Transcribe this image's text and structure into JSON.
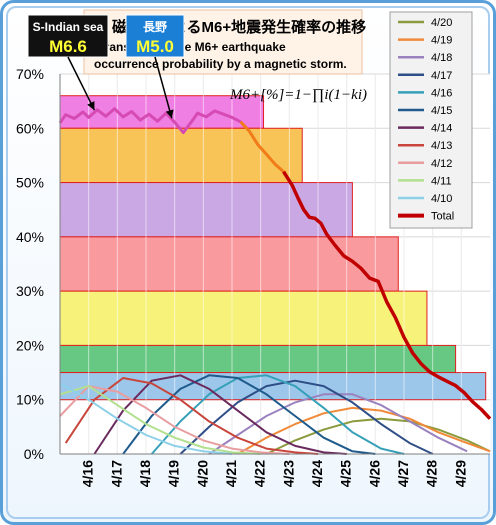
{
  "chart_data": {
    "type": "line",
    "title_line1": "磁気嵐によるM6+地震発生確率の推移",
    "title_line2": "Transition of the M6+ earthquake",
    "title_line3": "occurrence probability by a magnetic storm.",
    "formula": "M6+[%]=1−∏i(1−ki)",
    "ylim": [
      0,
      70
    ],
    "yticks": [
      "0%",
      "10%",
      "20%",
      "30%",
      "40%",
      "50%",
      "60%",
      "70%"
    ],
    "xticks": [
      "4/16",
      "4/17",
      "4/18",
      "4/19",
      "4/20",
      "4/21",
      "4/22",
      "4/23",
      "4/24",
      "4/25",
      "4/26",
      "4/27",
      "4/28",
      "4/29"
    ],
    "xrange": [
      0,
      15
    ],
    "legend_placement": "right",
    "legend": [
      {
        "name": "4/20",
        "color": "#8a9a3c"
      },
      {
        "name": "4/19",
        "color": "#f08a3a"
      },
      {
        "name": "4/18",
        "color": "#9a82bf"
      },
      {
        "name": "4/17",
        "color": "#2f4e87"
      },
      {
        "name": "4/16",
        "color": "#36a0b8"
      },
      {
        "name": "4/15",
        "color": "#1e5a8c"
      },
      {
        "name": "4/14",
        "color": "#6a2a5e"
      },
      {
        "name": "4/13",
        "color": "#c8463c"
      },
      {
        "name": "4/12",
        "color": "#e89ea0"
      },
      {
        "name": "4/11",
        "color": "#b2e08e"
      },
      {
        "name": "4/10",
        "color": "#8ed0e8"
      },
      {
        "name": "Total",
        "color": "#c00000"
      }
    ],
    "bands": [
      {
        "x0": 0,
        "x1": 7.1,
        "y0": 60,
        "y1": 66,
        "fill": "#ef7fe2"
      },
      {
        "x0": 0,
        "x1": 8.45,
        "y0": 50,
        "y1": 60,
        "fill": "#f8c458"
      },
      {
        "x0": 0,
        "x1": 10.2,
        "y0": 40,
        "y1": 50,
        "fill": "#c9a8e4"
      },
      {
        "x0": 0,
        "x1": 11.8,
        "y0": 30,
        "y1": 40,
        "fill": "#f99a9e"
      },
      {
        "x0": 0,
        "x1": 12.8,
        "y0": 20,
        "y1": 30,
        "fill": "#f7f27a"
      },
      {
        "x0": 0,
        "x1": 13.8,
        "y0": 15,
        "y1": 20,
        "fill": "#66c883"
      },
      {
        "x0": 0,
        "x1": 14.85,
        "y0": 10,
        "y1": 15,
        "fill": "#9cc7ea"
      }
    ],
    "series_total": {
      "name": "Total",
      "color": "#c00000",
      "x": [
        0,
        0.2,
        0.5,
        0.8,
        1.0,
        1.3,
        1.6,
        1.9,
        2.2,
        2.5,
        2.8,
        3.1,
        3.4,
        3.7,
        4.0,
        4.3,
        4.6,
        4.8,
        5.1,
        5.4,
        5.7,
        6.0,
        6.3,
        6.6,
        6.9,
        7.2,
        7.5,
        7.8,
        8.1,
        8.3,
        8.5,
        8.7,
        8.9,
        9.1,
        9.3,
        9.6,
        9.9,
        10.2,
        10.5,
        10.8,
        11.1,
        11.4,
        11.7,
        12.0,
        12.3,
        12.6,
        12.9,
        13.2,
        13.5,
        13.8,
        14.1,
        14.4,
        14.7,
        15.0
      ],
      "y": [
        61,
        62.5,
        61.8,
        63,
        62,
        63.4,
        62.2,
        63.6,
        62.1,
        63.1,
        61.5,
        62.6,
        61.3,
        62.8,
        61.1,
        59.2,
        61.3,
        62.8,
        62.1,
        63.2,
        62.6,
        62,
        61.2,
        59.5,
        57,
        55.2,
        53.4,
        52,
        49.5,
        47.2,
        45,
        43.6,
        43.4,
        42.5,
        40.5,
        38.4,
        36.5,
        35.5,
        34.2,
        32.4,
        31.8,
        28,
        25.1,
        21.5,
        18.6,
        16.6,
        15.1,
        14.2,
        13.4,
        12.6,
        11.3,
        9.6,
        8.2,
        6.5
      ]
    },
    "series": [
      {
        "name": "4/20",
        "color": "#8a9a3c",
        "x": [
          7.2,
          8.2,
          9.2,
          10.2,
          11.2,
          12.2,
          13.2,
          14.2,
          15.0
        ],
        "y": [
          0,
          2.5,
          4.5,
          6,
          6.5,
          6,
          4.5,
          2.5,
          0.5
        ]
      },
      {
        "name": "4/19",
        "color": "#f08a3a",
        "x": [
          6.2,
          7.2,
          8.2,
          9.2,
          10.2,
          11.2,
          12.2,
          13.2,
          14.2,
          15.0
        ],
        "y": [
          0,
          3,
          5.5,
          7.5,
          8.5,
          8,
          6.5,
          4,
          2,
          0.5
        ]
      },
      {
        "name": "4/18",
        "color": "#9a82bf",
        "x": [
          5.2,
          6.2,
          7.2,
          8.2,
          9.2,
          10.2,
          11.2,
          12.2,
          13.2,
          14.2
        ],
        "y": [
          0,
          3.5,
          7,
          9.5,
          11,
          11,
          9,
          6,
          3,
          0.5
        ]
      },
      {
        "name": "4/17",
        "color": "#2f4e87",
        "x": [
          4.2,
          5.2,
          6.2,
          7.2,
          8.2,
          9.2,
          10.2,
          11.2,
          12.2,
          13.0
        ],
        "y": [
          0,
          5,
          9.5,
          12.5,
          13.5,
          12.5,
          9.5,
          5.5,
          2,
          0
        ]
      },
      {
        "name": "4/16",
        "color": "#36a0b8",
        "x": [
          3.2,
          4.2,
          5.2,
          6.2,
          7.2,
          8.2,
          9.2,
          10.2,
          11.2,
          12.0
        ],
        "y": [
          0,
          6,
          11,
          14,
          14.5,
          12.5,
          8.5,
          4,
          1,
          0
        ]
      },
      {
        "name": "4/15",
        "color": "#1e5a8c",
        "x": [
          2.2,
          3.2,
          4.2,
          5.2,
          6.2,
          7.2,
          8.2,
          9.2,
          10.2,
          11.0
        ],
        "y": [
          0,
          7,
          12,
          14.5,
          14,
          11,
          7,
          3,
          0.5,
          0
        ]
      },
      {
        "name": "4/14",
        "color": "#6a2a5e",
        "x": [
          1.2,
          2.2,
          3.2,
          4.2,
          5.2,
          6.2,
          7.2,
          8.2,
          9.2,
          10.0
        ],
        "y": [
          0,
          8,
          13.5,
          14.5,
          12,
          8,
          4,
          1.5,
          0.3,
          0
        ]
      },
      {
        "name": "4/13",
        "color": "#c8463c",
        "x": [
          0.2,
          1.2,
          2.2,
          3.2,
          4.2,
          5.2,
          6.2,
          7.2,
          8.2,
          9.0
        ],
        "y": [
          2,
          10,
          14,
          13,
          10,
          6,
          3,
          1,
          0.3,
          0
        ]
      },
      {
        "name": "4/12",
        "color": "#e89ea0",
        "x": [
          0,
          1.0,
          2.0,
          3.0,
          4.0,
          5.0,
          6.0,
          7.0,
          8.0
        ],
        "y": [
          7,
          12.5,
          11.5,
          8.5,
          5,
          2.5,
          1,
          0.3,
          0
        ]
      },
      {
        "name": "4/11",
        "color": "#b2e08e",
        "x": [
          0,
          1.0,
          2.0,
          3.0,
          4.0,
          5.0,
          6.0,
          7.0
        ],
        "y": [
          11,
          12.5,
          9,
          5.5,
          3,
          1.2,
          0.3,
          0
        ]
      },
      {
        "name": "4/10",
        "color": "#8ed0e8",
        "x": [
          0,
          1.0,
          2.0,
          3.0,
          4.0,
          5.0,
          6.0
        ],
        "y": [
          13,
          10,
          6.5,
          3.5,
          1.5,
          0.5,
          0
        ]
      }
    ],
    "callouts": [
      {
        "label": "S-Indian sea",
        "mag": "M6.6",
        "target_x": 1.2,
        "target_y": 62.8
      },
      {
        "label": "長野",
        "mag": "M5.0",
        "target_x": 3.9,
        "target_y": 61.3
      }
    ]
  }
}
